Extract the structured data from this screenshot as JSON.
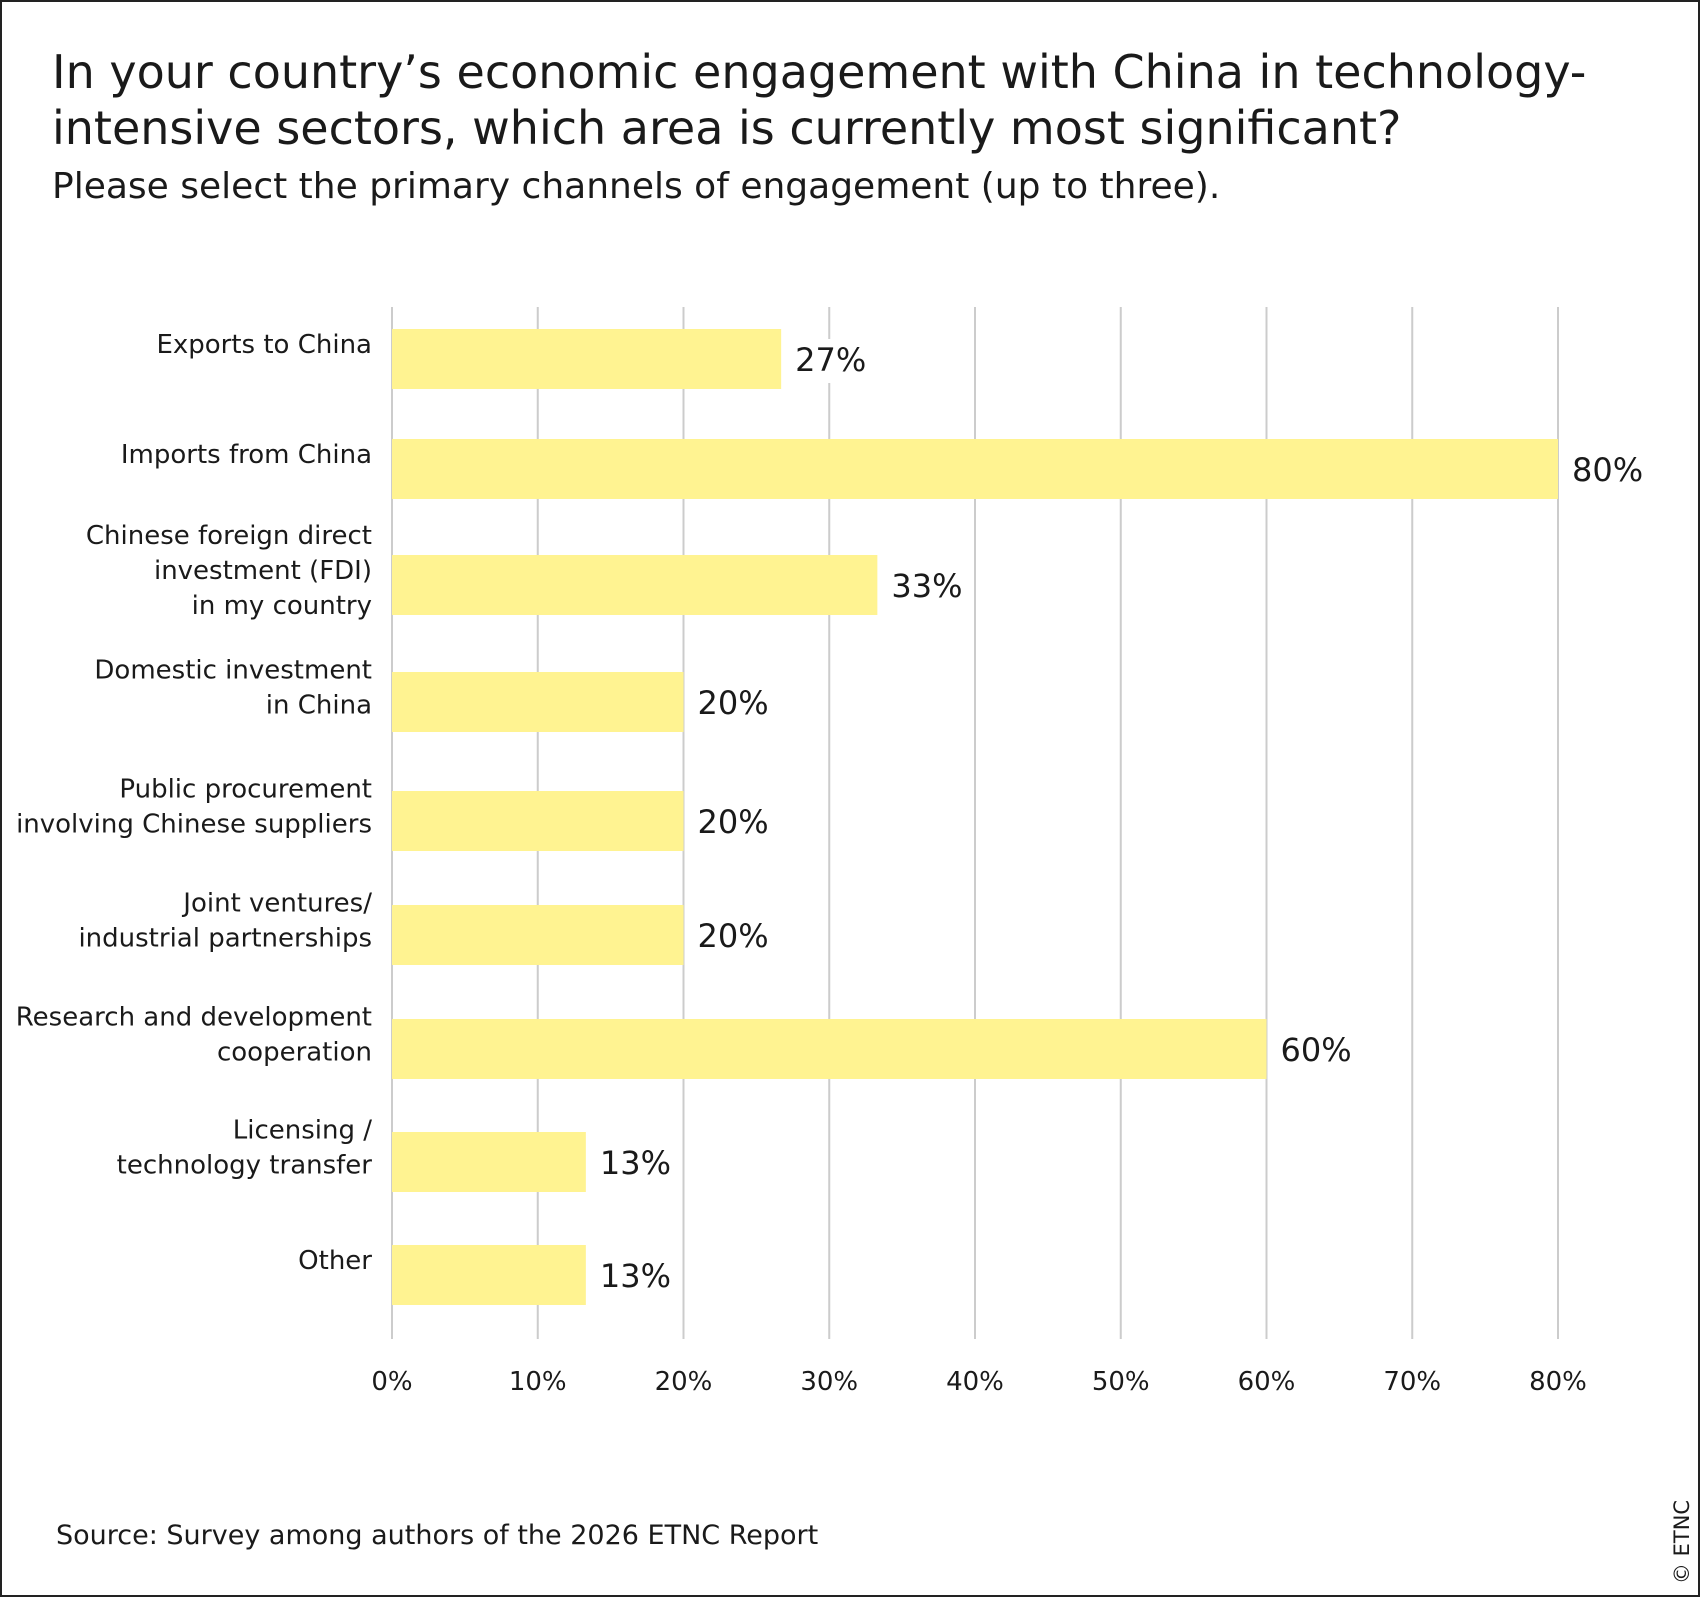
{
  "title": "In your country’s economic engagement with China in technology-intensive sectors, which area is currently most significant?",
  "subtitle": "Please select the primary channels of engagement (up to three).",
  "source": "Source: Survey among authors of the 2026 ETNC Report",
  "copyright": "© ETNC",
  "colors": {
    "bar": "#fff391",
    "grid": "#cccccc",
    "text": "#1a1a1a",
    "border": "#222222"
  },
  "chart_data": {
    "type": "bar",
    "orientation": "horizontal",
    "categories": [
      [
        "Exports to China"
      ],
      [
        "Imports from China"
      ],
      [
        "Chinese foreign direct",
        "investment (FDI)",
        "in my country"
      ],
      [
        "Domestic investment",
        "in China"
      ],
      [
        "Public procurement",
        "involving Chinese suppliers"
      ],
      [
        "Joint ventures/",
        "industrial partnerships"
      ],
      [
        "Research and development",
        "cooperation"
      ],
      [
        "Licensing /",
        "technology transfer"
      ],
      [
        "Other"
      ]
    ],
    "values": [
      26.7,
      80,
      33.3,
      20,
      20,
      20,
      60,
      13.3,
      13.3
    ],
    "value_labels": [
      "27%",
      "80%",
      "33%",
      "20%",
      "20%",
      "20%",
      "60%",
      "13%",
      "13%"
    ],
    "xlim": [
      0,
      80
    ],
    "xticks": [
      0,
      10,
      20,
      30,
      40,
      50,
      60,
      70,
      80
    ],
    "xtick_labels": [
      "0%",
      "10%",
      "20%",
      "30%",
      "40%",
      "50%",
      "60%",
      "70%",
      "80%"
    ],
    "grid": true,
    "legend": "none"
  }
}
